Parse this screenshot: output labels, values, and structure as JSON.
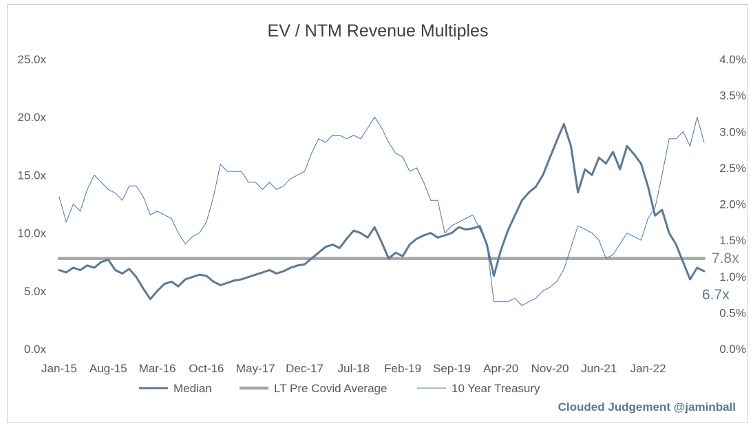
{
  "chart_data": {
    "type": "line",
    "title": "EV / NTM Revenue Multiples",
    "x_tick_labels": [
      "Jan-15",
      "Aug-15",
      "Mar-16",
      "Oct-16",
      "May-17",
      "Dec-17",
      "Jul-18",
      "Feb-19",
      "Sep-19",
      "Apr-20",
      "Nov-20",
      "Jun-21",
      "Jan-22"
    ],
    "x_range": [
      "2015-01",
      "2022-09"
    ],
    "y_left": {
      "range": [
        0,
        25
      ],
      "ticks": [
        "0.0x",
        "5.0x",
        "10.0x",
        "15.0x",
        "20.0x",
        "25.0x"
      ]
    },
    "y_right": {
      "range": [
        0,
        4
      ],
      "ticks": [
        "0.0%",
        "0.5%",
        "1.0%",
        "1.5%",
        "2.0%",
        "2.5%",
        "3.0%",
        "3.5%",
        "4.0%"
      ]
    },
    "grid": false,
    "legend_position": "bottom",
    "series": [
      {
        "name": "Median",
        "axis": "left",
        "color": "#5b7a95",
        "x": [
          "2015-01",
          "2015-02",
          "2015-03",
          "2015-04",
          "2015-05",
          "2015-06",
          "2015-07",
          "2015-08",
          "2015-09",
          "2015-10",
          "2015-11",
          "2015-12",
          "2016-01",
          "2016-02",
          "2016-03",
          "2016-04",
          "2016-05",
          "2016-06",
          "2016-07",
          "2016-08",
          "2016-09",
          "2016-10",
          "2016-11",
          "2016-12",
          "2017-01",
          "2017-02",
          "2017-03",
          "2017-04",
          "2017-05",
          "2017-06",
          "2017-07",
          "2017-08",
          "2017-09",
          "2017-10",
          "2017-11",
          "2017-12",
          "2018-01",
          "2018-02",
          "2018-03",
          "2018-04",
          "2018-05",
          "2018-06",
          "2018-07",
          "2018-08",
          "2018-09",
          "2018-10",
          "2018-11",
          "2018-12",
          "2019-01",
          "2019-02",
          "2019-03",
          "2019-04",
          "2019-05",
          "2019-06",
          "2019-07",
          "2019-08",
          "2019-09",
          "2019-10",
          "2019-11",
          "2019-12",
          "2020-01",
          "2020-02",
          "2020-03",
          "2020-04",
          "2020-05",
          "2020-06",
          "2020-07",
          "2020-08",
          "2020-09",
          "2020-10",
          "2020-11",
          "2020-12",
          "2021-01",
          "2021-02",
          "2021-03",
          "2021-04",
          "2021-05",
          "2021-06",
          "2021-07",
          "2021-08",
          "2021-09",
          "2021-10",
          "2021-11",
          "2021-12",
          "2022-01",
          "2022-02",
          "2022-03",
          "2022-04",
          "2022-05",
          "2022-06",
          "2022-07",
          "2022-08",
          "2022-09"
        ],
        "values": [
          6.8,
          6.6,
          7.0,
          6.8,
          7.2,
          7.0,
          7.5,
          7.7,
          6.8,
          6.5,
          6.9,
          6.2,
          5.2,
          4.3,
          5.0,
          5.6,
          5.8,
          5.4,
          6.0,
          6.2,
          6.4,
          6.3,
          5.8,
          5.5,
          5.7,
          5.9,
          6.0,
          6.2,
          6.4,
          6.6,
          6.8,
          6.5,
          6.7,
          7.0,
          7.2,
          7.3,
          7.8,
          8.3,
          8.8,
          9.0,
          8.7,
          9.5,
          10.2,
          10.0,
          9.6,
          10.5,
          9.2,
          7.8,
          8.3,
          8.0,
          9.0,
          9.5,
          9.8,
          10.0,
          9.6,
          9.8,
          10.0,
          10.5,
          10.3,
          10.4,
          10.6,
          9.0,
          6.3,
          8.5,
          10.2,
          11.5,
          12.8,
          13.5,
          14.0,
          15.0,
          16.5,
          18.0,
          19.4,
          17.5,
          13.5,
          15.5,
          15.0,
          16.5,
          16.0,
          17.0,
          15.5,
          17.5,
          16.8,
          16.0,
          14.0,
          11.5,
          12.0,
          10.0,
          9.0,
          7.5,
          6.0,
          7.0,
          6.7
        ]
      },
      {
        "name": "LT Pre Covid Average",
        "axis": "left",
        "color": "#a6a6a6",
        "x": [
          "2015-01",
          "2022-09"
        ],
        "values": [
          7.8,
          7.8
        ]
      },
      {
        "name": "10 Year Treasury",
        "axis": "right",
        "color": "#4472c4",
        "x": [
          "2015-01",
          "2015-02",
          "2015-03",
          "2015-04",
          "2015-05",
          "2015-06",
          "2015-07",
          "2015-08",
          "2015-09",
          "2015-10",
          "2015-11",
          "2015-12",
          "2016-01",
          "2016-02",
          "2016-03",
          "2016-04",
          "2016-05",
          "2016-06",
          "2016-07",
          "2016-08",
          "2016-09",
          "2016-10",
          "2016-11",
          "2016-12",
          "2017-01",
          "2017-02",
          "2017-03",
          "2017-04",
          "2017-05",
          "2017-06",
          "2017-07",
          "2017-08",
          "2017-09",
          "2017-10",
          "2017-11",
          "2017-12",
          "2018-01",
          "2018-02",
          "2018-03",
          "2018-04",
          "2018-05",
          "2018-06",
          "2018-07",
          "2018-08",
          "2018-09",
          "2018-10",
          "2018-11",
          "2018-12",
          "2019-01",
          "2019-02",
          "2019-03",
          "2019-04",
          "2019-05",
          "2019-06",
          "2019-07",
          "2019-08",
          "2019-09",
          "2019-10",
          "2019-11",
          "2019-12",
          "2020-01",
          "2020-02",
          "2020-03",
          "2020-04",
          "2020-05",
          "2020-06",
          "2020-07",
          "2020-08",
          "2020-09",
          "2020-10",
          "2020-11",
          "2020-12",
          "2021-01",
          "2021-02",
          "2021-03",
          "2021-04",
          "2021-05",
          "2021-06",
          "2021-07",
          "2021-08",
          "2021-09",
          "2021-10",
          "2021-11",
          "2021-12",
          "2022-01",
          "2022-02",
          "2022-03",
          "2022-04",
          "2022-05",
          "2022-06",
          "2022-07",
          "2022-08",
          "2022-09"
        ],
        "values": [
          2.1,
          1.75,
          2.0,
          1.9,
          2.2,
          2.4,
          2.3,
          2.2,
          2.15,
          2.05,
          2.25,
          2.25,
          2.1,
          1.85,
          1.9,
          1.85,
          1.8,
          1.6,
          1.45,
          1.55,
          1.6,
          1.75,
          2.1,
          2.55,
          2.45,
          2.45,
          2.45,
          2.3,
          2.3,
          2.2,
          2.3,
          2.2,
          2.25,
          2.35,
          2.4,
          2.45,
          2.7,
          2.9,
          2.85,
          2.95,
          2.95,
          2.9,
          2.95,
          2.9,
          3.05,
          3.2,
          3.05,
          2.85,
          2.7,
          2.65,
          2.45,
          2.5,
          2.3,
          2.05,
          2.05,
          1.6,
          1.7,
          1.75,
          1.8,
          1.85,
          1.65,
          1.45,
          0.65,
          0.65,
          0.65,
          0.7,
          0.6,
          0.65,
          0.7,
          0.8,
          0.85,
          0.93,
          1.1,
          1.4,
          1.7,
          1.65,
          1.6,
          1.5,
          1.25,
          1.3,
          1.45,
          1.6,
          1.55,
          1.5,
          1.8,
          1.95,
          2.4,
          2.9,
          2.9,
          3.0,
          2.8,
          3.2,
          2.85
        ]
      }
    ],
    "annotations": [
      {
        "text": "7.8x",
        "series": "LT Pre Covid Average",
        "color": "#808080"
      },
      {
        "text": "6.7x",
        "series": "Median",
        "color": "#5b7a95"
      }
    ]
  },
  "credit": "Clouded Judgement @jaminball"
}
